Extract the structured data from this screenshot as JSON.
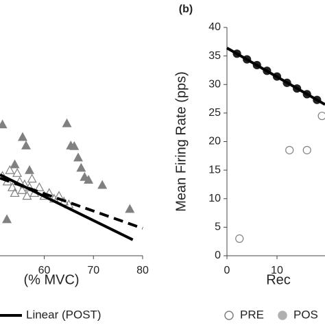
{
  "chart_data": [
    {
      "type": "scatter",
      "x_label": "(% MVC)",
      "xlim": [
        51,
        80
      ],
      "ylim": [
        0,
        40
      ],
      "xticks": [
        60,
        70,
        80
      ],
      "series": [
        {
          "marker": "triangle",
          "color": "#808080",
          "filled": true,
          "x": [
            64.6,
            65.4,
            66.1,
            66.9,
            67.5,
            68.2,
            69,
            71.8,
            77.4,
            52.4,
            51.5,
            55.6,
            56.3,
            54,
            57
          ],
          "values": [
            23.2,
            19.3,
            19.2,
            17.2,
            15.4,
            13.8,
            13.3,
            12.4,
            8.2,
            6.4,
            23,
            20.8,
            19.3,
            16,
            15
          ]
        },
        {
          "marker": "triangle",
          "color": "#808080",
          "filled": false,
          "x": [
            51.5,
            52.5,
            53,
            53.5,
            54,
            54.5,
            55,
            55.5,
            56,
            56.5,
            57,
            57.5,
            58,
            59,
            60,
            61,
            62,
            63,
            64,
            65
          ],
          "values": [
            14,
            13,
            15,
            12,
            11,
            14.5,
            13,
            11.5,
            12.5,
            10.5,
            12,
            13.5,
            11,
            12,
            10.5,
            11,
            10,
            10.5,
            9.5,
            9
          ]
        },
        {
          "marker": "line",
          "color": "#000000",
          "dash": true,
          "x": [
            51,
            80
          ],
          "values": [
            13.6,
            4.8
          ]
        },
        {
          "name": "Linear (POST)",
          "marker": "line",
          "color": "#000000",
          "dash": false,
          "x": [
            51,
            78
          ],
          "values": [
            14.2,
            2.8
          ]
        }
      ]
    },
    {
      "type": "scatter",
      "panel_label": "(b)",
      "y_label": "Mean Firing Rate (pps)",
      "x_label": "Rec",
      "xlim": [
        0,
        19.6
      ],
      "ylim": [
        0,
        40
      ],
      "xticks": [
        0,
        10
      ],
      "yticks": [
        0,
        5,
        10,
        15,
        20,
        25,
        30,
        35,
        40
      ],
      "series": [
        {
          "name": "PRE",
          "marker": "circle",
          "color": "#808080",
          "filled": false,
          "x": [
            2.5,
            12.5,
            16,
            19
          ],
          "values": [
            3,
            18.5,
            18.5,
            24.5
          ]
        },
        {
          "name": "POS",
          "marker": "circle",
          "color": "#b0b0b0",
          "filled": true,
          "x": [],
          "values": []
        },
        {
          "marker": "circle",
          "color": "#222222",
          "filled": true,
          "x": [
            2,
            4,
            6,
            8,
            10,
            12,
            14,
            16,
            18
          ],
          "values": [
            35.4,
            34.4,
            33.4,
            32.4,
            31.4,
            30.3,
            29.3,
            28.3,
            27.3
          ]
        },
        {
          "marker": "line",
          "color": "#000000",
          "dash": false,
          "x": [
            0,
            19.6
          ],
          "values": [
            36.4,
            26.5
          ]
        }
      ]
    }
  ]
}
